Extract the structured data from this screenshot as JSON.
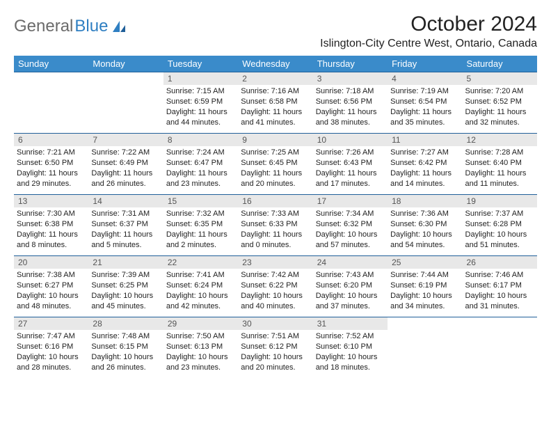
{
  "brand": {
    "part1": "General",
    "part2": "Blue",
    "text_color": "#6b6b6b",
    "accent_color": "#2f7fc2"
  },
  "title": "October 2024",
  "location": "Islington-City Centre West, Ontario, Canada",
  "styling": {
    "header_bg": "#3a8bca",
    "header_text": "#ffffff",
    "row_border": "#1f5f99",
    "daynum_bg": "#e8e8e8",
    "daynum_color": "#555555",
    "body_bg": "#ffffff",
    "font_family": "Arial",
    "cell_fontsize": 11,
    "header_fontsize": 13,
    "title_fontsize": 30,
    "location_fontsize": 16
  },
  "weekdays": [
    "Sunday",
    "Monday",
    "Tuesday",
    "Wednesday",
    "Thursday",
    "Friday",
    "Saturday"
  ],
  "weeks": [
    [
      null,
      null,
      {
        "n": "1",
        "sr": "Sunrise: 7:15 AM",
        "ss": "Sunset: 6:59 PM",
        "dl": "Daylight: 11 hours and 44 minutes."
      },
      {
        "n": "2",
        "sr": "Sunrise: 7:16 AM",
        "ss": "Sunset: 6:58 PM",
        "dl": "Daylight: 11 hours and 41 minutes."
      },
      {
        "n": "3",
        "sr": "Sunrise: 7:18 AM",
        "ss": "Sunset: 6:56 PM",
        "dl": "Daylight: 11 hours and 38 minutes."
      },
      {
        "n": "4",
        "sr": "Sunrise: 7:19 AM",
        "ss": "Sunset: 6:54 PM",
        "dl": "Daylight: 11 hours and 35 minutes."
      },
      {
        "n": "5",
        "sr": "Sunrise: 7:20 AM",
        "ss": "Sunset: 6:52 PM",
        "dl": "Daylight: 11 hours and 32 minutes."
      }
    ],
    [
      {
        "n": "6",
        "sr": "Sunrise: 7:21 AM",
        "ss": "Sunset: 6:50 PM",
        "dl": "Daylight: 11 hours and 29 minutes."
      },
      {
        "n": "7",
        "sr": "Sunrise: 7:22 AM",
        "ss": "Sunset: 6:49 PM",
        "dl": "Daylight: 11 hours and 26 minutes."
      },
      {
        "n": "8",
        "sr": "Sunrise: 7:24 AM",
        "ss": "Sunset: 6:47 PM",
        "dl": "Daylight: 11 hours and 23 minutes."
      },
      {
        "n": "9",
        "sr": "Sunrise: 7:25 AM",
        "ss": "Sunset: 6:45 PM",
        "dl": "Daylight: 11 hours and 20 minutes."
      },
      {
        "n": "10",
        "sr": "Sunrise: 7:26 AM",
        "ss": "Sunset: 6:43 PM",
        "dl": "Daylight: 11 hours and 17 minutes."
      },
      {
        "n": "11",
        "sr": "Sunrise: 7:27 AM",
        "ss": "Sunset: 6:42 PM",
        "dl": "Daylight: 11 hours and 14 minutes."
      },
      {
        "n": "12",
        "sr": "Sunrise: 7:28 AM",
        "ss": "Sunset: 6:40 PM",
        "dl": "Daylight: 11 hours and 11 minutes."
      }
    ],
    [
      {
        "n": "13",
        "sr": "Sunrise: 7:30 AM",
        "ss": "Sunset: 6:38 PM",
        "dl": "Daylight: 11 hours and 8 minutes."
      },
      {
        "n": "14",
        "sr": "Sunrise: 7:31 AM",
        "ss": "Sunset: 6:37 PM",
        "dl": "Daylight: 11 hours and 5 minutes."
      },
      {
        "n": "15",
        "sr": "Sunrise: 7:32 AM",
        "ss": "Sunset: 6:35 PM",
        "dl": "Daylight: 11 hours and 2 minutes."
      },
      {
        "n": "16",
        "sr": "Sunrise: 7:33 AM",
        "ss": "Sunset: 6:33 PM",
        "dl": "Daylight: 11 hours and 0 minutes."
      },
      {
        "n": "17",
        "sr": "Sunrise: 7:34 AM",
        "ss": "Sunset: 6:32 PM",
        "dl": "Daylight: 10 hours and 57 minutes."
      },
      {
        "n": "18",
        "sr": "Sunrise: 7:36 AM",
        "ss": "Sunset: 6:30 PM",
        "dl": "Daylight: 10 hours and 54 minutes."
      },
      {
        "n": "19",
        "sr": "Sunrise: 7:37 AM",
        "ss": "Sunset: 6:28 PM",
        "dl": "Daylight: 10 hours and 51 minutes."
      }
    ],
    [
      {
        "n": "20",
        "sr": "Sunrise: 7:38 AM",
        "ss": "Sunset: 6:27 PM",
        "dl": "Daylight: 10 hours and 48 minutes."
      },
      {
        "n": "21",
        "sr": "Sunrise: 7:39 AM",
        "ss": "Sunset: 6:25 PM",
        "dl": "Daylight: 10 hours and 45 minutes."
      },
      {
        "n": "22",
        "sr": "Sunrise: 7:41 AM",
        "ss": "Sunset: 6:24 PM",
        "dl": "Daylight: 10 hours and 42 minutes."
      },
      {
        "n": "23",
        "sr": "Sunrise: 7:42 AM",
        "ss": "Sunset: 6:22 PM",
        "dl": "Daylight: 10 hours and 40 minutes."
      },
      {
        "n": "24",
        "sr": "Sunrise: 7:43 AM",
        "ss": "Sunset: 6:20 PM",
        "dl": "Daylight: 10 hours and 37 minutes."
      },
      {
        "n": "25",
        "sr": "Sunrise: 7:44 AM",
        "ss": "Sunset: 6:19 PM",
        "dl": "Daylight: 10 hours and 34 minutes."
      },
      {
        "n": "26",
        "sr": "Sunrise: 7:46 AM",
        "ss": "Sunset: 6:17 PM",
        "dl": "Daylight: 10 hours and 31 minutes."
      }
    ],
    [
      {
        "n": "27",
        "sr": "Sunrise: 7:47 AM",
        "ss": "Sunset: 6:16 PM",
        "dl": "Daylight: 10 hours and 28 minutes."
      },
      {
        "n": "28",
        "sr": "Sunrise: 7:48 AM",
        "ss": "Sunset: 6:15 PM",
        "dl": "Daylight: 10 hours and 26 minutes."
      },
      {
        "n": "29",
        "sr": "Sunrise: 7:50 AM",
        "ss": "Sunset: 6:13 PM",
        "dl": "Daylight: 10 hours and 23 minutes."
      },
      {
        "n": "30",
        "sr": "Sunrise: 7:51 AM",
        "ss": "Sunset: 6:12 PM",
        "dl": "Daylight: 10 hours and 20 minutes."
      },
      {
        "n": "31",
        "sr": "Sunrise: 7:52 AM",
        "ss": "Sunset: 6:10 PM",
        "dl": "Daylight: 10 hours and 18 minutes."
      },
      null,
      null
    ]
  ]
}
